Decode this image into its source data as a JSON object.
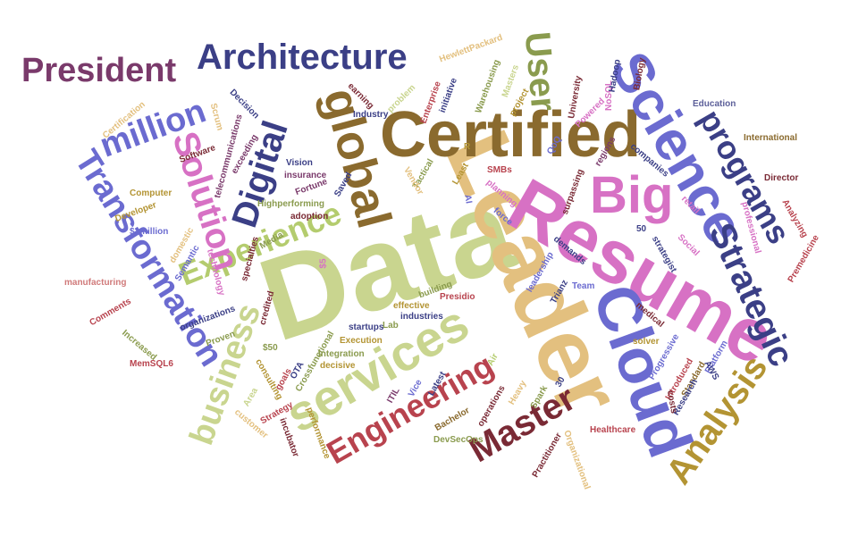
{
  "palette": {
    "navy": "#3b3f86",
    "violet": "#6b6bd0",
    "olive": "#8a9b4e",
    "lime": "#b4cc6e",
    "sage": "#c9d58f",
    "tan": "#e3c07f",
    "gold": "#b39433",
    "brown": "#8a6a2e",
    "plum": "#7a3a6b",
    "pink": "#d771c4",
    "maroon": "#7a2a35",
    "red": "#b8434e",
    "rose": "#d07a7a",
    "slate": "#5c5f99"
  },
  "words": [
    {
      "text": "Data",
      "color": "sage"
    },
    {
      "text": "Leader",
      "color": "tan"
    },
    {
      "text": "Resume",
      "color": "pink"
    },
    {
      "text": "Certified",
      "color": "brown"
    },
    {
      "text": "Science",
      "color": "violet"
    },
    {
      "text": "Cloud",
      "color": "violet"
    },
    {
      "text": "services",
      "color": "sage"
    },
    {
      "text": "Big",
      "color": "pink"
    },
    {
      "text": "global",
      "color": "brown"
    },
    {
      "text": "Architecture",
      "color": "navy"
    },
    {
      "text": "President",
      "color": "plum"
    },
    {
      "text": "Experience",
      "color": "lime"
    },
    {
      "text": "Engineering",
      "color": "red"
    },
    {
      "text": "Master",
      "color": "maroon"
    },
    {
      "text": "Analysis",
      "color": "gold"
    },
    {
      "text": "Strategic",
      "color": "navy"
    },
    {
      "text": "programs",
      "color": "navy"
    },
    {
      "text": "business",
      "color": "sage"
    },
    {
      "text": "Transformation",
      "color": "violet"
    },
    {
      "text": "Solution",
      "color": "pink"
    },
    {
      "text": "Digital",
      "color": "navy"
    },
    {
      "text": "million",
      "color": "violet"
    },
    {
      "text": "User",
      "color": "olive"
    },
    {
      "text": "Education",
      "color": "slate"
    },
    {
      "text": "International",
      "color": "brown"
    },
    {
      "text": "Director",
      "color": "maroon"
    },
    {
      "text": "Premedicine",
      "color": "red"
    },
    {
      "text": "Analyzing",
      "color": "red"
    },
    {
      "text": "professional",
      "color": "pink"
    },
    {
      "text": "retail",
      "color": "pink"
    },
    {
      "text": "Social",
      "color": "pink"
    },
    {
      "text": "strategist",
      "color": "navy"
    },
    {
      "text": "Platform",
      "color": "violet"
    },
    {
      "text": "AWS",
      "color": "navy"
    },
    {
      "text": "Standard",
      "color": "brown"
    },
    {
      "text": "Research",
      "color": "navy"
    },
    {
      "text": "Introduced",
      "color": "red"
    },
    {
      "text": "costs",
      "color": "maroon"
    },
    {
      "text": "Progressive",
      "color": "violet"
    },
    {
      "text": "solver",
      "color": "gold"
    },
    {
      "text": "medical",
      "color": "maroon"
    },
    {
      "text": "Healthcare",
      "color": "red"
    },
    {
      "text": "Organizational",
      "color": "tan"
    },
    {
      "text": "Practitioner",
      "color": "maroon"
    },
    {
      "text": "Spark",
      "color": "olive"
    },
    {
      "text": "30",
      "color": "navy"
    },
    {
      "text": "Heavy",
      "color": "tan"
    },
    {
      "text": "operations",
      "color": "maroon"
    },
    {
      "text": "Bachelor",
      "color": "brown"
    },
    {
      "text": "Latest",
      "color": "navy"
    },
    {
      "text": "Air",
      "color": "lime"
    },
    {
      "text": "Lab",
      "color": "olive"
    },
    {
      "text": "DevSecOps",
      "color": "olive"
    },
    {
      "text": "ITIL",
      "color": "plum"
    },
    {
      "text": "Vice",
      "color": "violet"
    },
    {
      "text": "incubator",
      "color": "maroon"
    },
    {
      "text": "performance",
      "color": "gold"
    },
    {
      "text": "Strategy",
      "color": "red"
    },
    {
      "text": "customer",
      "color": "tan"
    },
    {
      "text": "Area",
      "color": "sage"
    },
    {
      "text": "consulting",
      "color": "gold"
    },
    {
      "text": "goals",
      "color": "red"
    },
    {
      "text": "OTA",
      "color": "navy"
    },
    {
      "text": "Crossfunctional",
      "color": "olive"
    },
    {
      "text": "decisive",
      "color": "gold"
    },
    {
      "text": "Integration",
      "color": "olive"
    },
    {
      "text": "Execution",
      "color": "gold"
    },
    {
      "text": "startups",
      "color": "navy"
    },
    {
      "text": "industries",
      "color": "navy"
    },
    {
      "text": "effective",
      "color": "gold"
    },
    {
      "text": "Presidio",
      "color": "red"
    },
    {
      "text": "building",
      "color": "olive"
    },
    {
      "text": "Team",
      "color": "violet"
    },
    {
      "text": "Trianz",
      "color": "navy"
    },
    {
      "text": "leadership",
      "color": "violet"
    },
    {
      "text": "demands",
      "color": "navy"
    },
    {
      "text": "50",
      "color": "navy"
    },
    {
      "text": "QoQ",
      "color": "violet"
    },
    {
      "text": "regions",
      "color": "plum"
    },
    {
      "text": "companies",
      "color": "navy"
    },
    {
      "text": "Powered",
      "color": "pink"
    },
    {
      "text": "NoSQL",
      "color": "pink"
    },
    {
      "text": "University",
      "color": "maroon"
    },
    {
      "text": "Hadoop",
      "color": "navy"
    },
    {
      "text": "Biology",
      "color": "maroon"
    },
    {
      "text": "HewlettPackard",
      "color": "tan"
    },
    {
      "text": "Masters",
      "color": "sage"
    },
    {
      "text": "Warehousing",
      "color": "olive"
    },
    {
      "text": "project",
      "color": "gold"
    },
    {
      "text": "initiative",
      "color": "navy"
    },
    {
      "text": "Enterprise",
      "color": "red"
    },
    {
      "text": "problem",
      "color": "sage"
    },
    {
      "text": "earning",
      "color": "maroon"
    },
    {
      "text": "Industry",
      "color": "navy"
    },
    {
      "text": "surpassing",
      "color": "maroon"
    },
    {
      "text": "SMBs",
      "color": "red"
    },
    {
      "text": "planning",
      "color": "pink"
    },
    {
      "text": "force",
      "color": "violet"
    },
    {
      "text": "Least",
      "color": "gold"
    },
    {
      "text": "Tactical",
      "color": "olive"
    },
    {
      "text": "Vendor",
      "color": "tan"
    },
    {
      "text": "AI",
      "color": "violet"
    },
    {
      "text": "Saved",
      "color": "navy"
    },
    {
      "text": "Decision",
      "color": "navy"
    },
    {
      "text": "Scrum",
      "color": "tan"
    },
    {
      "text": "telecommunications",
      "color": "plum"
    },
    {
      "text": "exceeding",
      "color": "plum"
    },
    {
      "text": "Vision",
      "color": "navy"
    },
    {
      "text": "insurance",
      "color": "plum"
    },
    {
      "text": "Fortune",
      "color": "plum"
    },
    {
      "text": "Highperforming",
      "color": "olive"
    },
    {
      "text": "adoption",
      "color": "maroon"
    },
    {
      "text": "Media",
      "color": "olive"
    },
    {
      "text": "specialties",
      "color": "maroon"
    },
    {
      "text": "credited",
      "color": "maroon"
    },
    {
      "text": "organizations",
      "color": "navy"
    },
    {
      "text": "Proven",
      "color": "olive"
    },
    {
      "text": "$50",
      "color": "olive"
    },
    {
      "text": "$5",
      "color": "pink"
    },
    {
      "text": "Software",
      "color": "maroon"
    },
    {
      "text": "Computer",
      "color": "gold"
    },
    {
      "text": "Developer",
      "color": "gold"
    },
    {
      "text": "$1million",
      "color": "violet"
    },
    {
      "text": "domestic",
      "color": "tan"
    },
    {
      "text": "Semantic",
      "color": "violet"
    },
    {
      "text": "technology",
      "color": "pink"
    },
    {
      "text": "Certification",
      "color": "tan"
    },
    {
      "text": "manufacturing",
      "color": "rose"
    },
    {
      "text": "Comments",
      "color": "red"
    },
    {
      "text": "Increased",
      "color": "olive"
    },
    {
      "text": "MemSQL6",
      "color": "red"
    },
    {
      "text": "R",
      "color": "gold"
    }
  ]
}
